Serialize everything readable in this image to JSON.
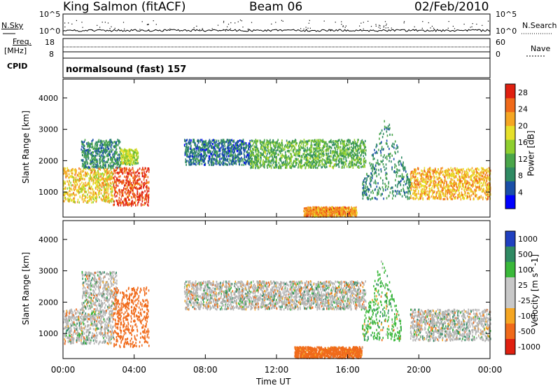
{
  "header": {
    "station": "King Salmon (fitACF)",
    "beam": "Beam 06",
    "date": "02/Feb/2010"
  },
  "strip_labels": {
    "nsky": "N.Sky",
    "nsearch": "N.Search",
    "freq": "Freq.",
    "freq_unit": "[MHz]",
    "nave": "Nave",
    "cpid": "CPID",
    "cpid_value": "normalsound (fast) 157"
  },
  "strip_ticks": {
    "noise_left": [
      "10^5",
      "10^0"
    ],
    "noise_right": [
      "10^5",
      "10^0"
    ],
    "freq_left": [
      "18",
      "8"
    ],
    "nave_right": [
      "60",
      "0"
    ]
  },
  "colors": {
    "power_scale": [
      "#0000ff",
      "#1a4fa8",
      "#2f8a63",
      "#4aa64a",
      "#8fcf2f",
      "#e6e02a",
      "#f5a623",
      "#f06a1a",
      "#e02010"
    ],
    "velocity_scale": [
      "#2040c0",
      "#2f8a63",
      "#3ab83a",
      "#c8c8c8",
      "#c8c8c8",
      "#f5a623",
      "#f06a1a",
      "#e02010"
    ],
    "ground_scatter": "#b4b4b4"
  },
  "chart_data": [
    {
      "type": "heatmap",
      "title": "Power",
      "xlabel": "Time UT",
      "ylabel": "Slant Range [km]",
      "x_ticks": [
        "00:00",
        "04:00",
        "08:00",
        "12:00",
        "16:00",
        "20:00",
        "00:00"
      ],
      "y_ticks": [
        "1000",
        "2000",
        "3000",
        "4000"
      ],
      "ylim": [
        200,
        4600
      ],
      "colorbar": {
        "label": "Power [dB]",
        "ticks": [
          "4",
          "8",
          "12",
          "16",
          "20",
          "24",
          "28"
        ],
        "range": [
          0,
          30
        ]
      },
      "regions": [
        {
          "t": [
            0.0,
            2.8
          ],
          "range_km": [
            700,
            1800
          ],
          "level": 20,
          "shape": "band"
        },
        {
          "t": [
            1.0,
            3.2
          ],
          "range_km": [
            1800,
            2700
          ],
          "level": 8,
          "shape": "band"
        },
        {
          "t": [
            2.8,
            4.8
          ],
          "range_km": [
            600,
            1800
          ],
          "level": 28,
          "shape": "blob"
        },
        {
          "t": [
            3.2,
            4.2
          ],
          "range_km": [
            1900,
            2400
          ],
          "level": 16,
          "shape": "band"
        },
        {
          "t": [
            6.8,
            10.5
          ],
          "range_km": [
            1900,
            2700
          ],
          "level": 6,
          "shape": "band"
        },
        {
          "t": [
            10.5,
            17.0
          ],
          "range_km": [
            1800,
            2700
          ],
          "level": 12,
          "shape": "band"
        },
        {
          "t": [
            13.5,
            16.5
          ],
          "range_km": [
            250,
            550
          ],
          "level": 24,
          "shape": "band"
        },
        {
          "t": [
            16.8,
            19.5
          ],
          "range_km": [
            800,
            3500
          ],
          "level": 8,
          "shape": "plume"
        },
        {
          "t": [
            19.5,
            24.0
          ],
          "range_km": [
            800,
            1800
          ],
          "level": 22,
          "shape": "band"
        }
      ]
    },
    {
      "type": "heatmap",
      "title": "Velocity",
      "xlabel": "Time UT",
      "ylabel": "Slant Range [km]",
      "x_ticks": [
        "00:00",
        "04:00",
        "08:00",
        "12:00",
        "16:00",
        "20:00",
        "00:00"
      ],
      "y_ticks": [
        "1000",
        "2000",
        "3000",
        "4000"
      ],
      "ylim": [
        200,
        4600
      ],
      "colorbar": {
        "label": "Velocity [m s^-1]",
        "ticks": [
          "1000",
          "500",
          "100",
          "25",
          "-25",
          "-100",
          "-500",
          "-1000"
        ]
      },
      "regions": [
        {
          "t": [
            0.0,
            2.8
          ],
          "range_km": [
            700,
            1800
          ],
          "velocity": 0,
          "shape": "band"
        },
        {
          "t": [
            1.0,
            3.0
          ],
          "range_km": [
            1800,
            3000
          ],
          "velocity": 0,
          "shape": "band"
        },
        {
          "t": [
            2.8,
            4.8
          ],
          "range_km": [
            600,
            2500
          ],
          "velocity": -300,
          "shape": "blob"
        },
        {
          "t": [
            6.8,
            17.0
          ],
          "range_km": [
            1800,
            2700
          ],
          "velocity": 0,
          "shape": "band"
        },
        {
          "t": [
            13.0,
            16.8
          ],
          "range_km": [
            250,
            600
          ],
          "velocity": -200,
          "shape": "band"
        },
        {
          "t": [
            16.8,
            19.0
          ],
          "range_km": [
            800,
            3500
          ],
          "velocity": 50,
          "shape": "plume"
        },
        {
          "t": [
            19.5,
            24.0
          ],
          "range_km": [
            800,
            1800
          ],
          "velocity": 0,
          "shape": "band"
        }
      ]
    }
  ]
}
